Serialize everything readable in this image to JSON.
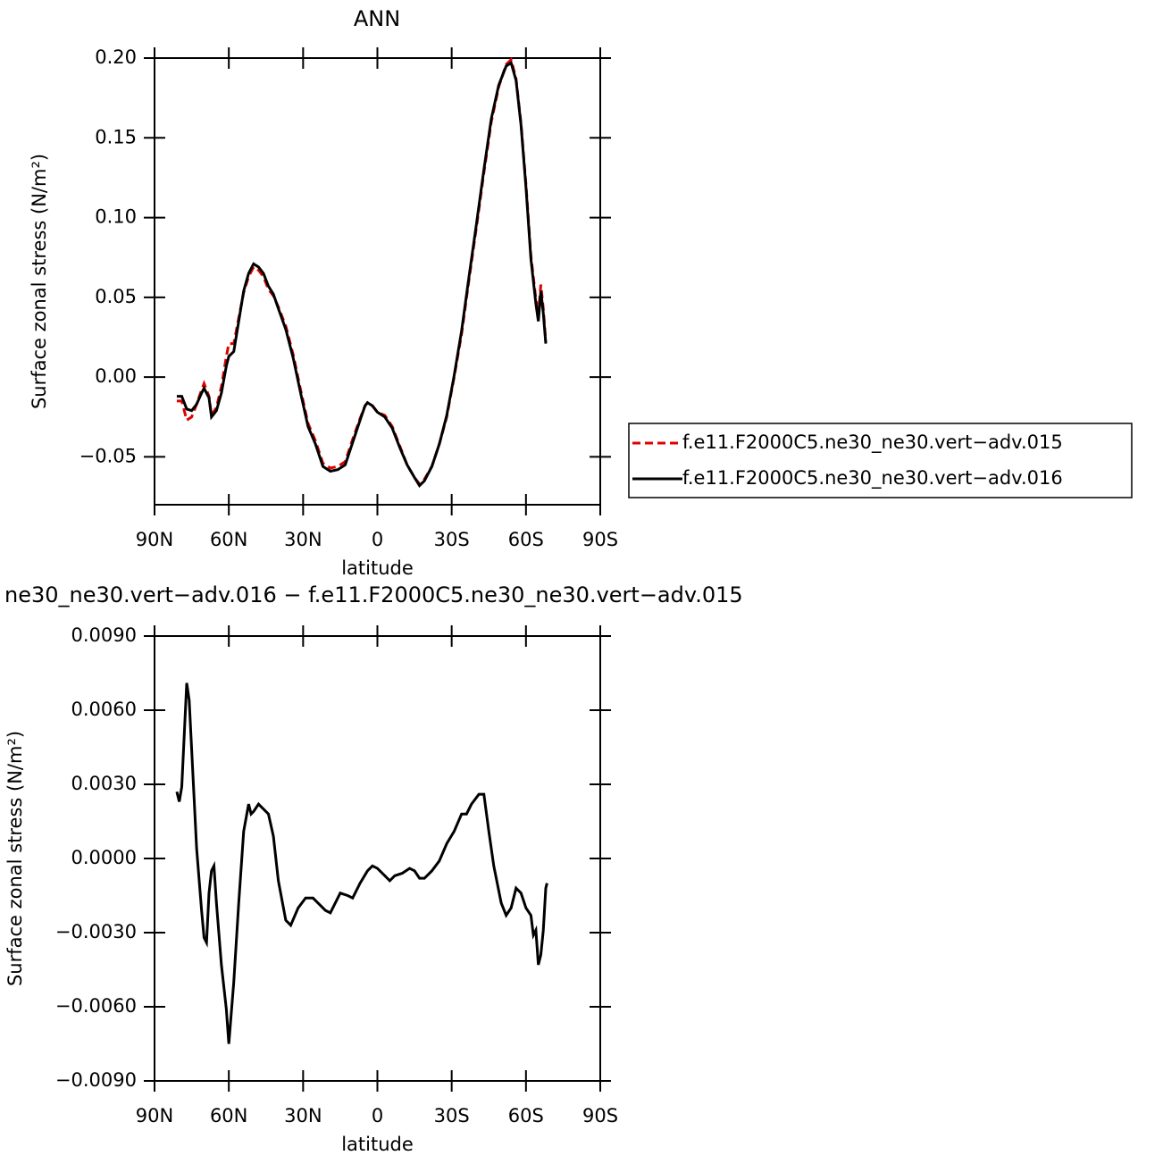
{
  "chart_data": [
    {
      "type": "line",
      "title": "ANN",
      "x_label": "latitude",
      "y_label": "Surface zonal stress (N/m²)",
      "xlim": [
        90,
        -90
      ],
      "ylim": [
        -0.08,
        0.2
      ],
      "xticks": [
        {
          "value": 90,
          "label": "90N"
        },
        {
          "value": 60,
          "label": "60N"
        },
        {
          "value": 30,
          "label": "30N"
        },
        0,
        {
          "value": -30,
          "label": "30S"
        },
        {
          "value": -60,
          "label": "60S"
        },
        {
          "value": -90,
          "label": "90S"
        }
      ],
      "yticks": [
        {
          "value": 0.2,
          "label": "0.20"
        },
        {
          "value": 0.15,
          "label": "0.15"
        },
        {
          "value": 0.1,
          "label": "0.10"
        },
        {
          "value": 0.05,
          "label": "0.05"
        },
        {
          "value": 0,
          "label": "0.00"
        },
        {
          "value": -0.05,
          "label": "−0.05"
        }
      ],
      "legend": "right",
      "x": [
        81,
        79,
        77,
        75,
        73,
        71,
        70,
        68,
        67,
        65,
        63,
        61,
        60,
        58,
        56,
        54,
        52,
        50,
        48,
        46,
        44,
        42,
        40,
        37,
        34,
        31,
        28,
        25,
        22,
        19,
        16,
        13,
        10,
        7,
        5,
        4,
        2,
        0,
        -3,
        -6,
        -9,
        -12,
        -15,
        -17,
        -19,
        -22,
        -25,
        -28,
        -31,
        -34,
        -37,
        -40,
        -43,
        -46,
        -49,
        -52,
        -54,
        -56,
        -58,
        -60,
        -62,
        -64,
        -65,
        -66,
        -67,
        -68
      ],
      "series": [
        {
          "name": "f.e11.F2000C5.ne30_ne30.vert−adv.015",
          "color": "#e00000",
          "linestyle": "dashed",
          "values": [
            -0.015,
            -0.015,
            -0.027,
            -0.025,
            -0.017,
            -0.008,
            -0.004,
            -0.012,
            -0.024,
            -0.019,
            -0.006,
            0.013,
            0.021,
            0.021,
            0.037,
            0.053,
            0.063,
            0.069,
            0.067,
            0.063,
            0.055,
            0.051,
            0.044,
            0.032,
            0.014,
            -0.008,
            -0.029,
            -0.04,
            -0.054,
            -0.057,
            -0.056,
            -0.053,
            -0.039,
            -0.026,
            -0.018,
            -0.016,
            -0.018,
            -0.022,
            -0.024,
            -0.031,
            -0.043,
            -0.055,
            -0.063,
            -0.067,
            -0.064,
            -0.056,
            -0.042,
            -0.025,
            0.0,
            0.027,
            0.061,
            0.094,
            0.128,
            0.16,
            0.182,
            0.196,
            0.199,
            0.187,
            0.159,
            0.121,
            0.076,
            0.049,
            0.039,
            0.058,
            0.043,
            0.022
          ]
        },
        {
          "name": "f.e11.F2000C5.ne30_ne30.vert−adv.016",
          "color": "#000000",
          "linestyle": "solid",
          "values": [
            -0.012,
            -0.012,
            -0.02,
            -0.021,
            -0.017,
            -0.01,
            -0.007,
            -0.013,
            -0.025,
            -0.021,
            -0.01,
            0.007,
            0.013,
            0.016,
            0.035,
            0.054,
            0.065,
            0.071,
            0.069,
            0.065,
            0.057,
            0.052,
            0.043,
            0.03,
            0.012,
            -0.01,
            -0.031,
            -0.042,
            -0.056,
            -0.059,
            -0.058,
            -0.055,
            -0.041,
            -0.027,
            -0.018,
            -0.016,
            -0.018,
            -0.022,
            -0.025,
            -0.032,
            -0.044,
            -0.055,
            -0.063,
            -0.068,
            -0.065,
            -0.056,
            -0.042,
            -0.024,
            0.001,
            0.029,
            0.063,
            0.096,
            0.13,
            0.162,
            0.183,
            0.195,
            0.197,
            0.186,
            0.158,
            0.119,
            0.074,
            0.046,
            0.035,
            0.054,
            0.04,
            0.021
          ]
        }
      ]
    },
    {
      "type": "line",
      "title": "ne30_ne30.vert−adv.016 − f.e11.F2000C5.ne30_ne30.vert−adv.015",
      "x_label": "latitude",
      "y_label": "Surface zonal stress (N/m²)",
      "xlim": [
        90,
        -90
      ],
      "ylim": [
        -0.009,
        0.009
      ],
      "xticks": [
        {
          "value": 90,
          "label": "90N"
        },
        {
          "value": 60,
          "label": "60N"
        },
        {
          "value": 30,
          "label": "30N"
        },
        0,
        {
          "value": -30,
          "label": "30S"
        },
        {
          "value": -60,
          "label": "60S"
        },
        {
          "value": -90,
          "label": "90S"
        }
      ],
      "yticks": [
        {
          "value": 0.009,
          "label": "0.0090"
        },
        {
          "value": 0.006,
          "label": "0.0060"
        },
        {
          "value": 0.003,
          "label": "0.0030"
        },
        {
          "value": 0,
          "label": "0.0000"
        },
        {
          "value": -0.003,
          "label": "−0.0030"
        },
        {
          "value": -0.006,
          "label": "−0.0060"
        },
        {
          "value": -0.009,
          "label": "−0.0090"
        }
      ],
      "x": [
        81,
        80,
        79,
        77,
        76,
        75,
        73,
        71,
        70,
        69,
        68,
        67,
        66,
        65,
        63,
        61,
        60,
        58,
        56,
        54,
        52,
        51,
        50,
        48,
        46,
        44,
        42,
        40,
        37,
        35,
        32,
        29,
        26,
        24,
        21,
        19,
        17,
        15,
        12,
        10,
        7,
        4,
        2,
        0,
        -3,
        -5,
        -7,
        -10,
        -13,
        -15,
        -17,
        -19,
        -22,
        -25,
        -28,
        -31,
        -34,
        -36,
        -38,
        -41,
        -43,
        -45,
        -47,
        -50,
        -52,
        -54,
        -56,
        -58,
        -60,
        -62,
        -63,
        -64,
        -65,
        -66,
        -67,
        -68,
        -68.5
      ],
      "series": [
        {
          "color": "#000000",
          "linestyle": "solid",
          "values": [
            0.0027,
            0.0023,
            0.0029,
            0.0071,
            0.0064,
            0.0044,
            0.0004,
            -0.0021,
            -0.0032,
            -0.0034,
            -0.0014,
            -0.0005,
            -0.0003,
            -0.0018,
            -0.0043,
            -0.0061,
            -0.0075,
            -0.005,
            -0.0018,
            0.0011,
            0.0022,
            0.0018,
            0.0019,
            0.0022,
            0.002,
            0.0018,
            0.0009,
            -0.0009,
            -0.0025,
            -0.0027,
            -0.002,
            -0.0016,
            -0.0016,
            -0.0018,
            -0.0021,
            -0.0022,
            -0.0018,
            -0.0014,
            -0.0015,
            -0.0016,
            -0.001,
            -0.0005,
            -0.0003,
            -0.0004,
            -0.0007,
            -0.0009,
            -0.0007,
            -0.0006,
            -0.0004,
            -0.0005,
            -0.0008,
            -0.0008,
            -0.0005,
            -0.0001,
            0.0006,
            0.0011,
            0.0018,
            0.0018,
            0.0022,
            0.0026,
            0.0026,
            0.0011,
            -0.0003,
            -0.0018,
            -0.0023,
            -0.002,
            -0.0012,
            -0.0014,
            -0.002,
            -0.0023,
            -0.0031,
            -0.0029,
            -0.0043,
            -0.0039,
            -0.0029,
            -0.0012,
            -0.001
          ]
        }
      ]
    }
  ]
}
